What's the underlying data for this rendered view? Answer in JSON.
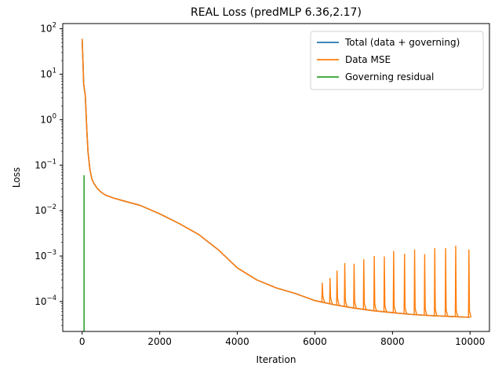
{
  "chart_data": {
    "type": "line",
    "title": "REAL Loss (predMLP 6.36,2.17)",
    "xlabel": "Iteration",
    "ylabel": "Loss",
    "xlim": [
      -500,
      10500
    ],
    "ylim": [
      2.2e-05,
      130
    ],
    "yscale": "log",
    "xticks": [
      0,
      2000,
      4000,
      6000,
      8000,
      10000
    ],
    "xtick_labels": [
      "0",
      "2000",
      "4000",
      "6000",
      "8000",
      "10000"
    ],
    "yticks_exp": [
      -4,
      -3,
      -2,
      -1,
      0,
      1,
      2
    ],
    "ytick_labels": [
      "10",
      "10",
      "10",
      "10",
      "10",
      "10",
      "10"
    ],
    "ytick_superscripts": [
      "−4",
      "−3",
      "−2",
      "−1",
      "0",
      "1",
      "2"
    ],
    "grid": false,
    "legend_position": "top-right",
    "colors": {
      "total": "#1f77b4",
      "data": "#ff7f0e",
      "governing": "#2ca02c"
    },
    "series": [
      {
        "name": "Total (data + governing)",
        "color": "#1f77b4",
        "x": [
          0,
          20,
          40,
          60,
          80,
          100,
          120,
          150,
          200,
          250,
          300,
          400,
          500,
          600,
          800,
          1000,
          1500,
          2000,
          2500,
          3000,
          3500,
          4000,
          4500,
          5000,
          5500,
          6000,
          6500,
          7000,
          7500,
          8000,
          8500,
          9000,
          9500,
          10000
        ],
        "y": [
          60,
          20,
          6,
          4.5,
          3.5,
          1.5,
          0.6,
          0.2,
          0.08,
          0.05,
          0.04,
          0.03,
          0.025,
          0.022,
          0.019,
          0.017,
          0.013,
          0.0085,
          0.0052,
          0.003,
          0.0014,
          0.00055,
          0.0003,
          0.0002,
          0.00015,
          0.000105,
          8.5e-05,
          7.2e-05,
          6.3e-05,
          5.7e-05,
          5.2e-05,
          4.9e-05,
          4.7e-05,
          4.5e-05
        ]
      },
      {
        "name": "Data MSE",
        "color": "#ff7f0e",
        "x": [
          0,
          20,
          40,
          60,
          80,
          100,
          120,
          150,
          200,
          250,
          300,
          400,
          500,
          600,
          800,
          1000,
          1500,
          2000,
          2500,
          3000,
          3500,
          4000,
          4500,
          5000,
          5500,
          6000,
          6500,
          7000,
          7500,
          8000,
          8500,
          9000,
          9500,
          10000
        ],
        "y": [
          60,
          20,
          6,
          4.5,
          3.5,
          1.5,
          0.6,
          0.2,
          0.08,
          0.05,
          0.04,
          0.03,
          0.025,
          0.022,
          0.019,
          0.017,
          0.013,
          0.0085,
          0.0052,
          0.003,
          0.0014,
          0.00055,
          0.0003,
          0.0002,
          0.00015,
          0.000105,
          8.5e-05,
          7.2e-05,
          6.3e-05,
          5.7e-05,
          5.2e-05,
          4.9e-05,
          4.7e-05,
          4.5e-05
        ],
        "spikes": [
          {
            "x": 6180,
            "y": 0.00026
          },
          {
            "x": 6380,
            "y": 0.00033
          },
          {
            "x": 6560,
            "y": 0.00048
          },
          {
            "x": 6760,
            "y": 0.0007
          },
          {
            "x": 7000,
            "y": 0.00068
          },
          {
            "x": 7250,
            "y": 0.00085
          },
          {
            "x": 7520,
            "y": 0.001
          },
          {
            "x": 7780,
            "y": 0.00098
          },
          {
            "x": 8020,
            "y": 0.0013
          },
          {
            "x": 8300,
            "y": 0.00112
          },
          {
            "x": 8560,
            "y": 0.0014
          },
          {
            "x": 8820,
            "y": 0.0011
          },
          {
            "x": 9080,
            "y": 0.0015
          },
          {
            "x": 9360,
            "y": 0.0015
          },
          {
            "x": 9620,
            "y": 0.0017
          },
          {
            "x": 9960,
            "y": 0.0014
          }
        ]
      },
      {
        "name": "Governing residual",
        "color": "#2ca02c",
        "x": [
          50,
          50
        ],
        "y": [
          0.06,
          2.2e-05
        ]
      }
    ]
  }
}
